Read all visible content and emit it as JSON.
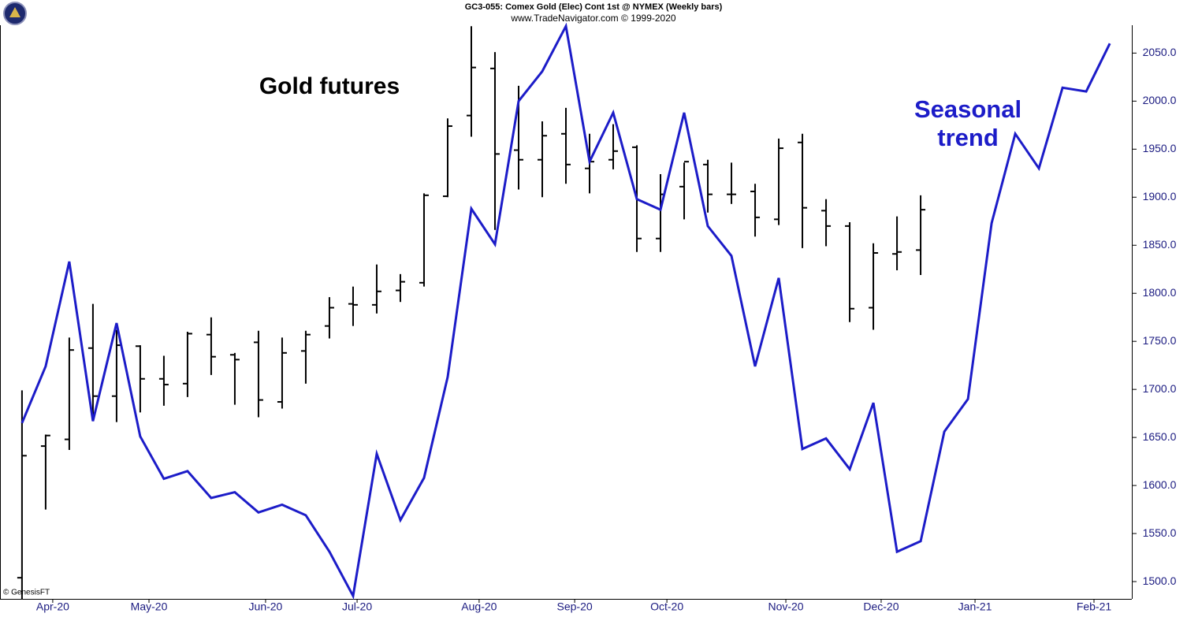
{
  "chart_data": {
    "type": "ohlc",
    "title": "GC3-055:  Comex Gold (Elec) Cont 1st @ NYMEX  (Weekly bars)",
    "subtitle": "www.TradeNavigator.com © 1999-2020",
    "credit": "© GenesisFT",
    "annotations": [
      "Gold futures",
      "Seasonal",
      "trend"
    ],
    "ohlc": {
      "color": "#000000",
      "open": [
        1504,
        1641,
        1648,
        1743,
        1693,
        1745,
        1711,
        1706,
        1757,
        1736,
        1749,
        1687,
        1740,
        1766,
        1789,
        1788,
        1803,
        1811,
        1901,
        1985,
        2034,
        1949,
        1939,
        1966,
        1930,
        1939,
        1952,
        1857,
        1911,
        1934,
        1903,
        1906,
        1877,
        1957,
        1886,
        1870,
        1785,
        1841,
        1845
      ],
      "high": [
        1699,
        1653,
        1754,
        1789,
        1762,
        1746,
        1735,
        1760,
        1775,
        1738,
        1761,
        1754,
        1761,
        1796,
        1807,
        1830,
        1820,
        1904,
        1982,
        2078,
        2051,
        2016,
        1979,
        1993,
        1966,
        1976,
        1954,
        1924,
        1936,
        1939,
        1936,
        1914,
        1961,
        1966,
        1898,
        1874,
        1852,
        1880,
        1902
      ],
      "low": [
        1482,
        1575,
        1637,
        1668,
        1666,
        1676,
        1683,
        1692,
        1715,
        1684,
        1671,
        1680,
        1706,
        1753,
        1766,
        1779,
        1791,
        1807,
        1900,
        1963,
        1866,
        1908,
        1900,
        1914,
        1904,
        1929,
        1843,
        1843,
        1877,
        1884,
        1893,
        1859,
        1871,
        1847,
        1849,
        1770,
        1762,
        1824,
        1819
      ],
      "close": [
        1631,
        1652,
        1741,
        1693,
        1746,
        1711,
        1705,
        1758,
        1734,
        1731,
        1689,
        1738,
        1757,
        1785,
        1788,
        1802,
        1812,
        1902,
        1974,
        2035,
        1945,
        1939,
        1964,
        1934,
        1937,
        1948,
        1857,
        1903,
        1937,
        1903,
        1903,
        1879,
        1951,
        1889,
        1870,
        1784,
        1842,
        1843,
        1887
      ]
    },
    "line": {
      "color": "#1c1cc8",
      "values": [
        1665,
        1724,
        1833,
        1667,
        1769,
        1651,
        1607,
        1615,
        1587,
        1593,
        1572,
        1580,
        1569,
        1531,
        1485,
        1633,
        1564,
        1608,
        1713,
        1888,
        1851,
        2000,
        2031,
        2078,
        1937,
        1988,
        1898,
        1887,
        1988,
        1870,
        1839,
        1724,
        1816,
        1638,
        1649,
        1617,
        1686,
        1531,
        1542,
        1656,
        1690,
        1873,
        1966,
        1930,
        2014,
        2010,
        2060
      ]
    },
    "ylim": [
      1482,
      2079
    ],
    "yticks": [
      {
        "value": 1500,
        "label": "1500.0"
      },
      {
        "value": 1550,
        "label": "1550.0"
      },
      {
        "value": 1600,
        "label": "1600.0"
      },
      {
        "value": 1650,
        "label": "1650.0"
      },
      {
        "value": 1700,
        "label": "1700.0"
      },
      {
        "value": 1750,
        "label": "1750.0"
      },
      {
        "value": 1800,
        "label": "1800.0"
      },
      {
        "value": 1850,
        "label": "1850.0"
      },
      {
        "value": 1900,
        "label": "1900.0"
      },
      {
        "value": 1950,
        "label": "1950.0"
      },
      {
        "value": 2000,
        "label": "2000.0"
      },
      {
        "value": 2050,
        "label": "2050.0"
      }
    ],
    "xlim": [
      -0.93,
      46.93
    ],
    "xticks": [
      {
        "value": 1.3,
        "label": "Apr-20"
      },
      {
        "value": 5.37,
        "label": "May-20"
      },
      {
        "value": 10.3,
        "label": "Jun-20"
      },
      {
        "value": 14.17,
        "label": "Jul-20"
      },
      {
        "value": 19.33,
        "label": "Aug-20"
      },
      {
        "value": 23.37,
        "label": "Sep-20"
      },
      {
        "value": 27.27,
        "label": "Oct-20"
      },
      {
        "value": 32.3,
        "label": "Nov-20"
      },
      {
        "value": 36.33,
        "label": "Dec-20"
      },
      {
        "value": 40.3,
        "label": "Jan-21"
      },
      {
        "value": 45.33,
        "label": "Feb-21"
      }
    ],
    "axis_color": "#1a1a80"
  }
}
